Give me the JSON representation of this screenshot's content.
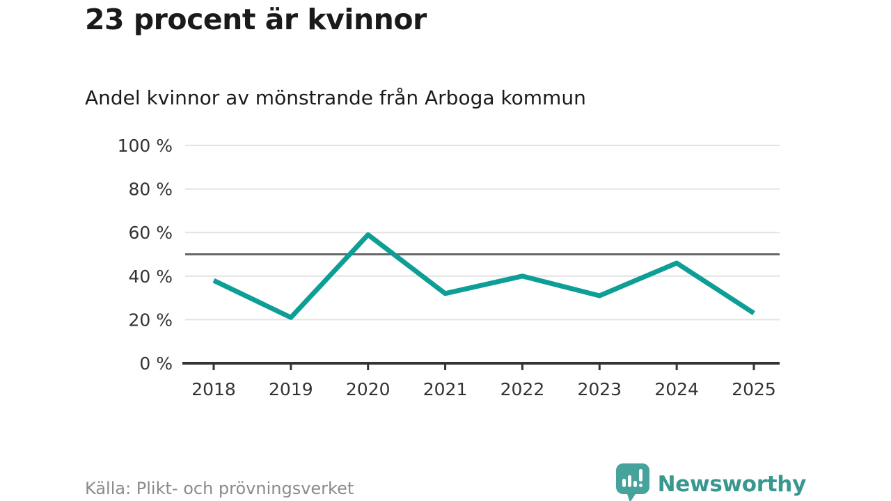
{
  "title": "23 procent är kvinnor",
  "subtitle": "Andel kvinnor av mönstrande från Arboga kommun",
  "source_note": "Källa: Plikt- och prövningsverket",
  "branding": {
    "name": "Newsworthy",
    "icon": "chart-speech-bubble-icon"
  },
  "colors": {
    "line": "#0d9e96",
    "grid": "#e2e2e2",
    "axis": "#333333",
    "reference_line": "#666666",
    "tick_text": "#333333",
    "muted_text": "#8b8b8b",
    "brand_teal": "#38978f",
    "brand_icon_teal": "#46a39b"
  },
  "chart_data": {
    "type": "line",
    "title": "23 procent är kvinnor",
    "subtitle": "Andel kvinnor av mönstrande från Arboga kommun",
    "x": [
      2018,
      2019,
      2020,
      2021,
      2022,
      2023,
      2024,
      2025
    ],
    "series": [
      {
        "name": "Andel kvinnor av mönstrande",
        "values": [
          38,
          21,
          59,
          32,
          40,
          31,
          46,
          23
        ]
      }
    ],
    "ylim": [
      0,
      100
    ],
    "yticks": [
      0,
      20,
      40,
      60,
      80,
      100
    ],
    "ytick_suffix": " %",
    "reference_line": 50,
    "grid": true,
    "legend": false
  }
}
